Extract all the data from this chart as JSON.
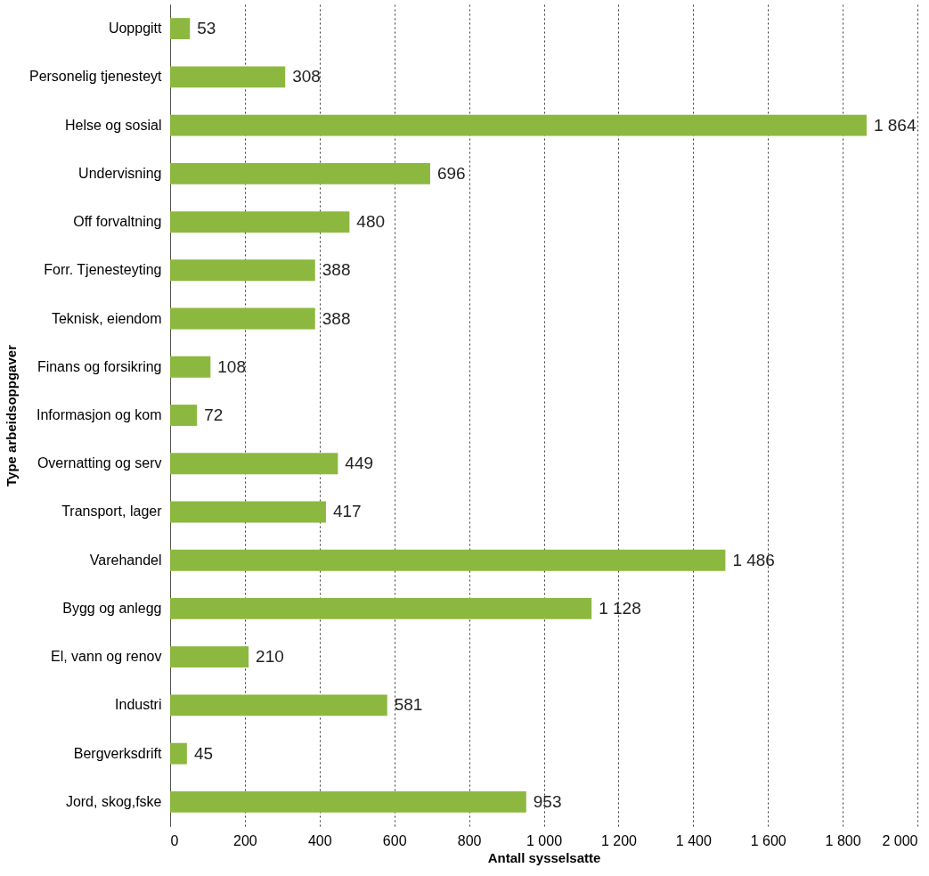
{
  "chart_data": {
    "type": "bar",
    "orientation": "horizontal",
    "xlabel": "Antall sysselsatte",
    "ylabel": "Type arbeidsoppgaver",
    "categories": [
      "Uoppgitt",
      "Personelig tjenesteyt",
      "Helse og sosial",
      "Undervisning",
      "Off forvaltning",
      "Forr. Tjenesteyting",
      "Teknisk, eiendom",
      "Finans og forsikring",
      "Informasjon og kom",
      "Overnatting og serv",
      "Transport, lager",
      "Varehandel",
      "Bygg og anlegg",
      "El, vann og renov",
      "Industri",
      "Bergverksdrift",
      "Jord, skog,fske"
    ],
    "values": [
      53,
      308,
      1864,
      696,
      480,
      388,
      388,
      108,
      72,
      449,
      417,
      1486,
      1128,
      210,
      581,
      45,
      953
    ],
    "value_labels": [
      "53",
      "308",
      "1 864",
      "696",
      "480",
      "388",
      "388",
      "108",
      "72",
      "449",
      "417",
      "1 486",
      "1 128",
      "210",
      "581",
      "45",
      "953"
    ],
    "color": "#8cb83f",
    "xlim": [
      0,
      2000
    ],
    "xticks": [
      0,
      200,
      400,
      600,
      800,
      {
        "value": 1000,
        "label": "1 000"
      },
      {
        "value": 1200,
        "label": "1 200"
      },
      {
        "value": 1400,
        "label": "1 400"
      },
      {
        "value": 1600,
        "label": "1 600"
      },
      {
        "value": 1800,
        "label": "1 800"
      },
      {
        "value": 2000,
        "label": "2 000"
      }
    ],
    "grid": "x"
  }
}
